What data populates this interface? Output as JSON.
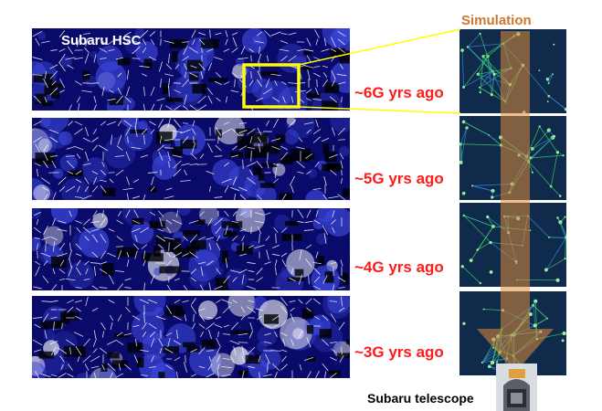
{
  "survey_label": "Subaru HSC",
  "simulation_label": "Simulation",
  "telescope_label": "Subaru telescope",
  "panels": [
    {
      "epoch": "~6G yrs ago",
      "brightness": 0.25
    },
    {
      "epoch": "~5G yrs ago",
      "brightness": 0.4
    },
    {
      "epoch": "~4G yrs ago",
      "brightness": 0.6
    },
    {
      "epoch": "~3G yrs ago",
      "brightness": 0.85
    }
  ],
  "colors": {
    "map_background": "#0a0a6a",
    "epoch_text": "#ff1a1a",
    "highlight_box": "#ffff00",
    "simulation_title": "#c87a2a",
    "arrow": "#e08a3a"
  },
  "icons": {
    "telescope": "telescope-icon"
  }
}
